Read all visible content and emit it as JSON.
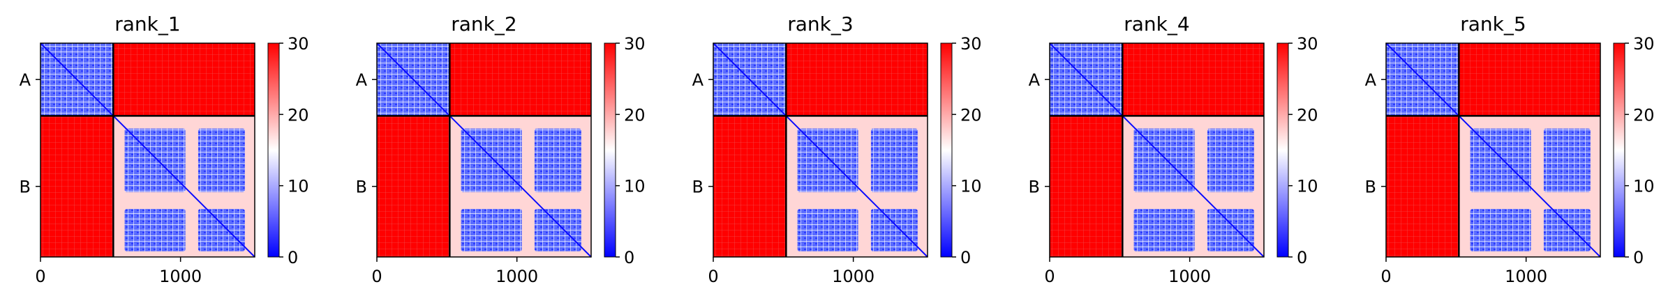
{
  "chart_data": [
    {
      "type": "heatmap",
      "title": "rank_1",
      "xlabel": "",
      "ylabel": "",
      "x_range": [
        0,
        1530
      ],
      "x_ticks": [
        0,
        1000
      ],
      "y_ticks": [
        "A",
        "B"
      ],
      "chains": [
        {
          "name": "A",
          "start": 0,
          "end": 520
        },
        {
          "name": "B",
          "start": 520,
          "end": 1530
        }
      ],
      "colorbar": {
        "min": 0,
        "max": 30,
        "ticks": [
          0,
          10,
          20,
          30
        ],
        "colormap": "bwr"
      },
      "grid": false
    },
    {
      "type": "heatmap",
      "title": "rank_2",
      "xlabel": "",
      "ylabel": "",
      "x_range": [
        0,
        1530
      ],
      "x_ticks": [
        0,
        1000
      ],
      "y_ticks": [
        "A",
        "B"
      ],
      "chains": [
        {
          "name": "A",
          "start": 0,
          "end": 520
        },
        {
          "name": "B",
          "start": 520,
          "end": 1530
        }
      ],
      "colorbar": {
        "min": 0,
        "max": 30,
        "ticks": [
          0,
          10,
          20,
          30
        ],
        "colormap": "bwr"
      },
      "grid": false
    },
    {
      "type": "heatmap",
      "title": "rank_3",
      "xlabel": "",
      "ylabel": "",
      "x_range": [
        0,
        1530
      ],
      "x_ticks": [
        0,
        1000
      ],
      "y_ticks": [
        "A",
        "B"
      ],
      "chains": [
        {
          "name": "A",
          "start": 0,
          "end": 520
        },
        {
          "name": "B",
          "start": 520,
          "end": 1530
        }
      ],
      "colorbar": {
        "min": 0,
        "max": 30,
        "ticks": [
          0,
          10,
          20,
          30
        ],
        "colormap": "bwr"
      },
      "grid": false
    },
    {
      "type": "heatmap",
      "title": "rank_4",
      "xlabel": "",
      "ylabel": "",
      "x_range": [
        0,
        1530
      ],
      "x_ticks": [
        0,
        1000
      ],
      "y_ticks": [
        "A",
        "B"
      ],
      "chains": [
        {
          "name": "A",
          "start": 0,
          "end": 520
        },
        {
          "name": "B",
          "start": 520,
          "end": 1530
        }
      ],
      "colorbar": {
        "min": 0,
        "max": 30,
        "ticks": [
          0,
          10,
          20,
          30
        ],
        "colormap": "bwr"
      },
      "grid": false
    },
    {
      "type": "heatmap",
      "title": "rank_5",
      "xlabel": "",
      "ylabel": "",
      "x_range": [
        0,
        1530
      ],
      "x_ticks": [
        0,
        1000
      ],
      "y_ticks": [
        "A",
        "B"
      ],
      "chains": [
        {
          "name": "A",
          "start": 0,
          "end": 520
        },
        {
          "name": "B",
          "start": 520,
          "end": 1530
        }
      ],
      "colorbar": {
        "min": 0,
        "max": 30,
        "ticks": [
          0,
          10,
          20,
          30
        ],
        "colormap": "bwr"
      },
      "grid": false
    }
  ],
  "colors": {
    "low": "#0000ff",
    "mid": "#ffffff",
    "high": "#ff0000",
    "boundary": "#000000"
  }
}
